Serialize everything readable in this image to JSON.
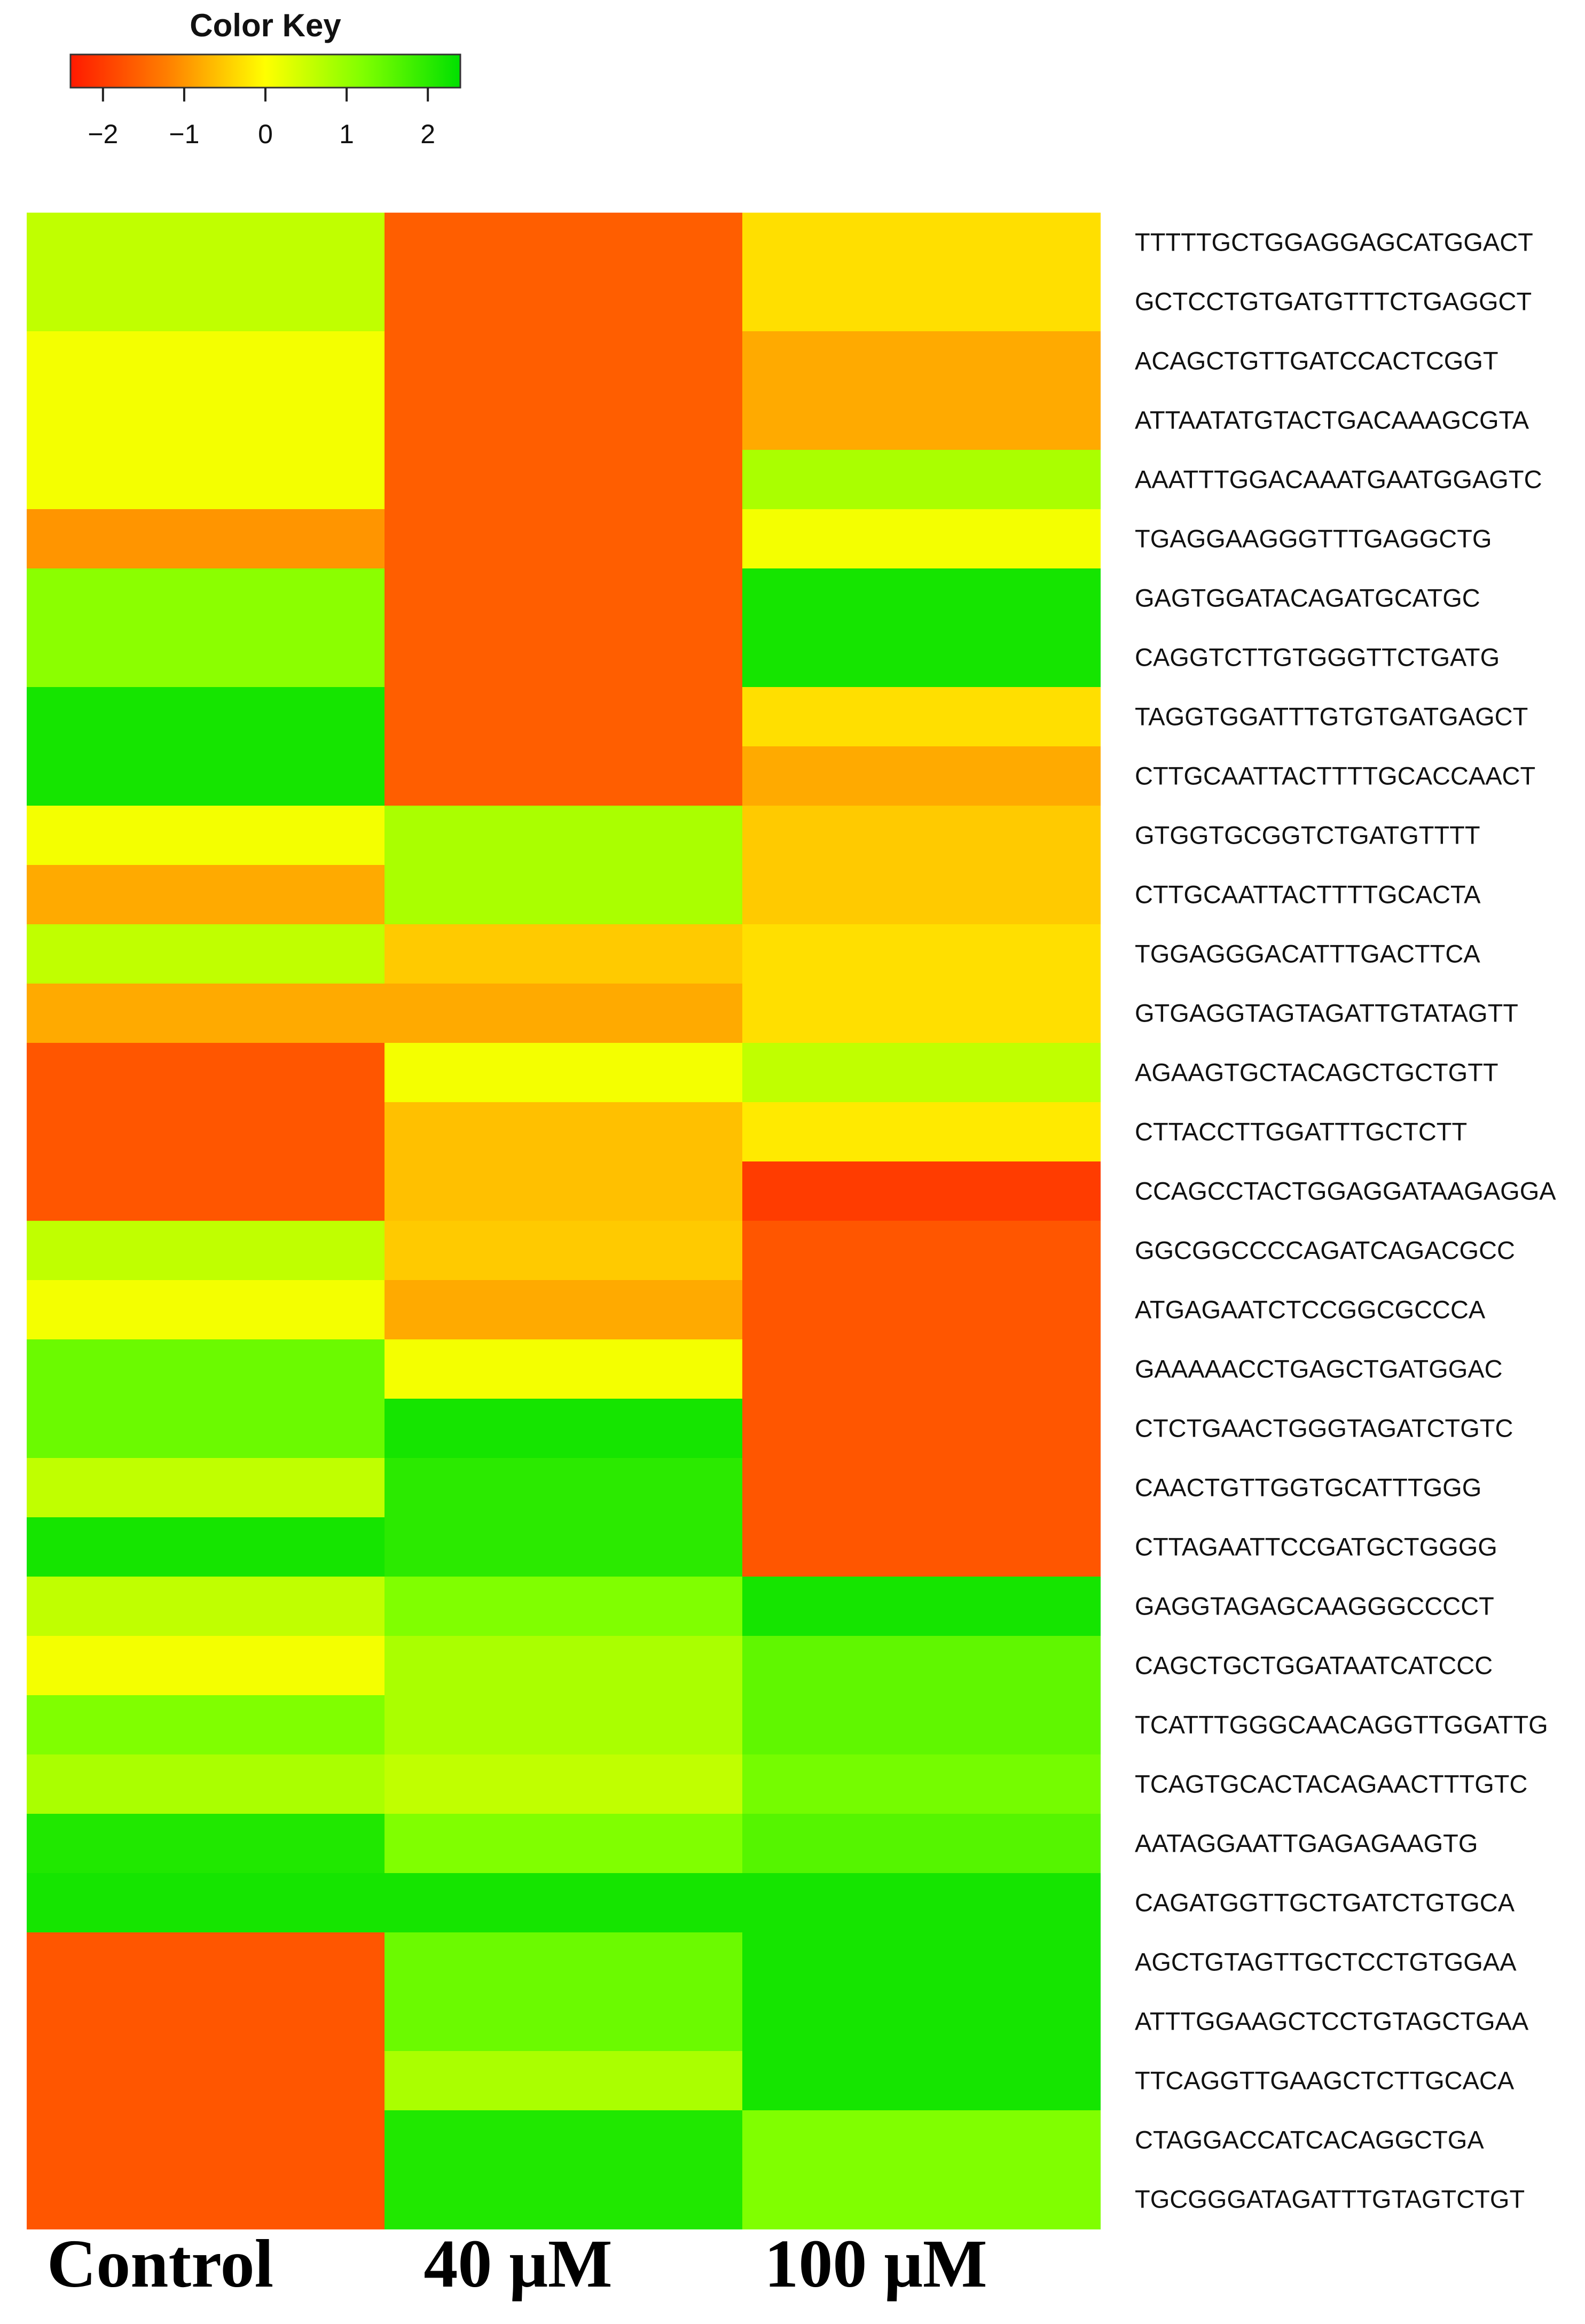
{
  "chart_data": {
    "type": "heatmap",
    "color_key": {
      "title": "Color Key",
      "ticks": [
        -2,
        -1,
        0,
        1,
        2
      ],
      "tick_labels": [
        "−2",
        "−1",
        "0",
        "1",
        "2"
      ],
      "range": [
        -2.4,
        2.4
      ],
      "colors": [
        "#ff1a00",
        "#ff8000",
        "#ffff00",
        "#80ff00",
        "#00e000"
      ]
    },
    "columns": [
      "Control",
      "40 μM",
      "100 μM"
    ],
    "rows": [
      "TTTTTGCTGGAGGAGCATGGACT",
      "GCTCCTGTGATGTTTCTGAGGCT",
      "ACAGCTGTTGATCCACTCGGT",
      "ATTAATATGTACTGACAAAGCGTA",
      "AAATTTGGACAAATGAATGGAGTC",
      "TGAGGAAGGGTTTGAGGCTG",
      "GAGTGGATACAGATGCATGC",
      "CAGGTCTTGTGGGTTCTGATG",
      "TAGGTGGATTTGTGTGATGAGCT",
      "CTTGCAATTACTTTTGCACCAACT",
      "GTGGTGCGGTCTGATGTTTT",
      "CTTGCAATTACTTTTGCACTA",
      "TGGAGGGACATTTGACTTCA",
      "GTGAGGTAGTAGATTGTATAGTT",
      "AGAAGTGCTACAGCTGCTGTT",
      "CTTACCTTGGATTTGCTCTT",
      "CCAGCCTACTGGAGGATAAGAGGA",
      "GGCGGCCCCAGATCAGACGCC",
      "ATGAGAATCTCCGGCGCCCA",
      "GAAAAACCTGAGCTGATGGAC",
      "CTCTGAACTGGGTAGATCTGTC",
      "CAACTGTTGGTGCATTTGGG",
      "CTTAGAATTCCGATGCTGGGG",
      "GAGGTAGAGCAAGGGCCCCT",
      "CAGCTGCTGGATAATCATCCC",
      "TCATTTGGGCAACAGGTTGGATTG",
      "TCAGTGCACTACAGAACTTTGTC",
      "AATAGGAATTGAGAGAAGTG",
      "CAGATGGTTGCTGATCTGTGCA",
      "AGCTGTAGTTGCTCCTGTGGAA",
      "ATTTGGAAGCTCCTGTAGCTGAA",
      "TTCAGGTTGAAGCTCTTGCACA",
      "CTAGGACCATCACAGGCTGA",
      "TGCGGGATAGATTTGTAGTCTGT"
    ],
    "values": [
      [
        0.6,
        -1.6,
        -0.3
      ],
      [
        0.6,
        -1.6,
        -0.3
      ],
      [
        0.1,
        -1.6,
        -0.8
      ],
      [
        0.1,
        -1.6,
        -0.8
      ],
      [
        0.1,
        -1.6,
        0.8
      ],
      [
        -1.0,
        -1.6,
        0.1
      ],
      [
        1.1,
        -1.6,
        2.2
      ],
      [
        1.1,
        -1.6,
        2.2
      ],
      [
        2.2,
        -1.6,
        -0.3
      ],
      [
        2.2,
        -1.6,
        -0.8
      ],
      [
        0.1,
        0.8,
        -0.5
      ],
      [
        -0.8,
        0.8,
        -0.5
      ],
      [
        0.6,
        -0.5,
        -0.3
      ],
      [
        -0.8,
        -0.8,
        -0.3
      ],
      [
        -1.7,
        0.1,
        0.6
      ],
      [
        -1.7,
        -0.6,
        -0.2
      ],
      [
        -1.7,
        -0.6,
        -2.0
      ],
      [
        0.6,
        -0.5,
        -1.7
      ],
      [
        0.1,
        -0.8,
        -1.7
      ],
      [
        1.4,
        0.1,
        -1.7
      ],
      [
        1.4,
        2.2,
        -1.7
      ],
      [
        0.6,
        2.0,
        -1.7
      ],
      [
        2.2,
        2.0,
        -1.7
      ],
      [
        0.6,
        1.2,
        2.2
      ],
      [
        0.1,
        0.8,
        1.5
      ],
      [
        1.2,
        0.8,
        1.5
      ],
      [
        0.8,
        0.6,
        1.3
      ],
      [
        2.1,
        1.2,
        1.6
      ],
      [
        2.2,
        2.2,
        2.2
      ],
      [
        -1.7,
        1.4,
        2.2
      ],
      [
        -1.7,
        1.4,
        2.2
      ],
      [
        -1.7,
        0.8,
        2.2
      ],
      [
        -1.7,
        2.1,
        1.2
      ],
      [
        -1.7,
        2.1,
        1.2
      ]
    ]
  }
}
